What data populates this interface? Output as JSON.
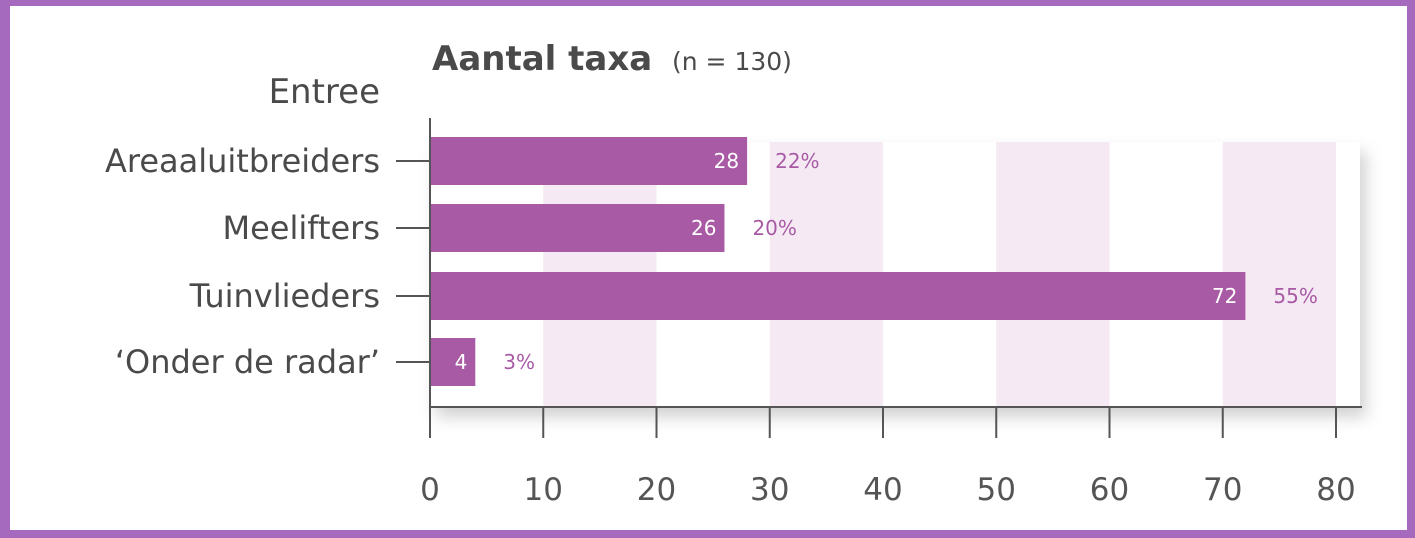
{
  "chart_data": {
    "type": "bar",
    "orientation": "horizontal",
    "title": "Aantal taxa",
    "subtitle": "(n = 130)",
    "ylabel": "Entree",
    "xlabel": "",
    "categories": [
      "Areaaluitbreiders",
      "Meelifters",
      "Tuinvlieders",
      "‘Onder de radar’"
    ],
    "values": [
      28,
      26,
      72,
      4
    ],
    "value_labels": [
      "28",
      "26",
      "72",
      "4"
    ],
    "percent_labels": [
      "22%",
      "20%",
      "55%",
      "3%"
    ],
    "xlim": [
      0,
      80
    ],
    "xticks": [
      0,
      10,
      20,
      30,
      40,
      50,
      60,
      70,
      80
    ],
    "xtick_labels": [
      "0",
      "10",
      "20",
      "30",
      "40",
      "50",
      "60",
      "70",
      "80"
    ],
    "grid": "alternating vertical bands",
    "legend": "none"
  },
  "colors": {
    "bar": "#a85aa5",
    "band": "#f5eaf4",
    "percent_text": "#a85aa5",
    "frame": "#a569bd",
    "axis": "#555555"
  }
}
